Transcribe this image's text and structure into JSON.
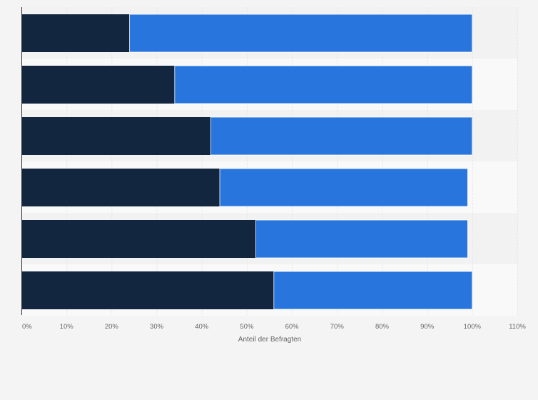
{
  "chart_data": {
    "type": "bar",
    "orientation": "horizontal",
    "stacked": true,
    "title": "",
    "xlabel": "Anteil der Befragten",
    "ylabel": "",
    "xlim": [
      0,
      110
    ],
    "x_tick_values": [
      0,
      10,
      20,
      30,
      40,
      50,
      60,
      70,
      80,
      90,
      100,
      110
    ],
    "x_tick_labels": [
      "0%",
      "10%",
      "20%",
      "30%",
      "40%",
      "50%",
      "60%",
      "70%",
      "80%",
      "90%",
      "100%",
      "110%"
    ],
    "categories": [
      "",
      "",
      "",
      "",
      "",
      ""
    ],
    "series": [
      {
        "values": [
          24,
          34,
          42,
          44,
          52,
          56
        ],
        "color": "#12263f"
      },
      {
        "values": [
          76,
          66,
          58,
          55,
          47,
          44
        ],
        "color": "#2876dd"
      }
    ],
    "grid": true,
    "legend": "none",
    "colors": {
      "background": "#f4f4f4",
      "band_light": "#f9f9f9",
      "band_dark": "#f2f2f2",
      "gridline": "#e3e3e3",
      "axis": "#333333",
      "text": "#666666"
    }
  }
}
